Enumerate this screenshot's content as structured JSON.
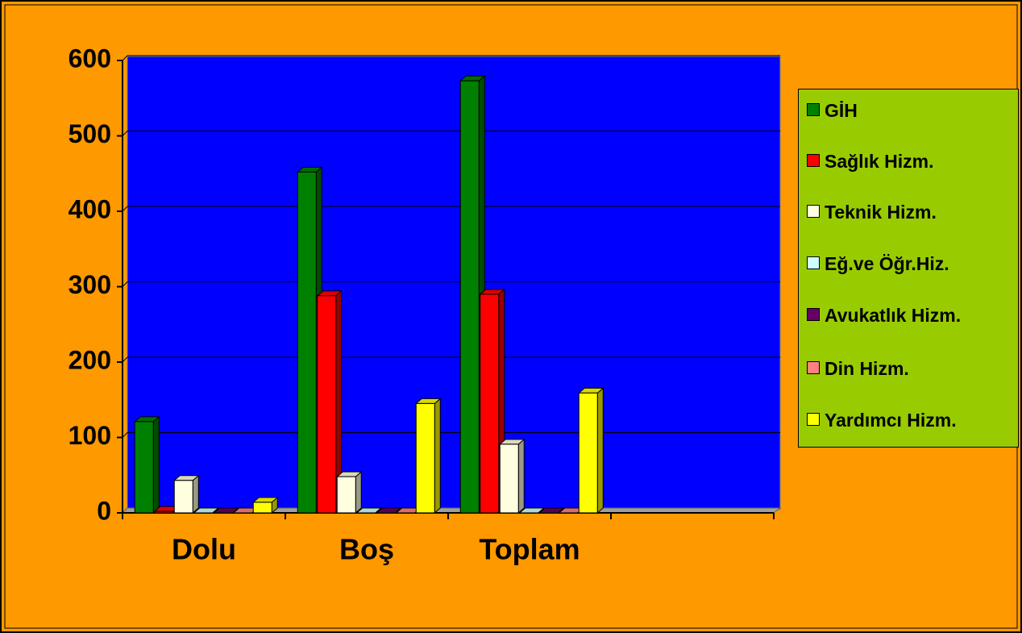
{
  "chart_data": {
    "type": "bar",
    "categories": [
      "Dolu",
      "Boş",
      "Toplam",
      null
    ],
    "series": [
      {
        "name": "GİH",
        "color": "#008000",
        "values": [
          121,
          452,
          573,
          null
        ]
      },
      {
        "name": "Sağlık Hizm.",
        "color": "#ff0000",
        "values": [
          2,
          288,
          290,
          null
        ]
      },
      {
        "name": "Teknik Hizm.",
        "color": "#ffffe0",
        "values": [
          43,
          48,
          91,
          null
        ]
      },
      {
        "name": "Eğ.ve Öğr.Hiz.",
        "color": "#ccffff",
        "values": [
          0,
          0,
          0,
          null
        ]
      },
      {
        "name": "Avukatlık Hizm.",
        "color": "#660066",
        "values": [
          0,
          0,
          0,
          null
        ]
      },
      {
        "name": "Din Hizm.",
        "color": "#ff8080",
        "values": [
          0,
          0,
          0,
          null
        ]
      },
      {
        "name": "Yardımcı Hizm.",
        "color": "#ffff00",
        "values": [
          14,
          145,
          159,
          null
        ]
      }
    ],
    "ylim": [
      0,
      600
    ],
    "yticks": [
      0,
      100,
      200,
      300,
      400,
      500,
      600
    ],
    "grid": true
  }
}
